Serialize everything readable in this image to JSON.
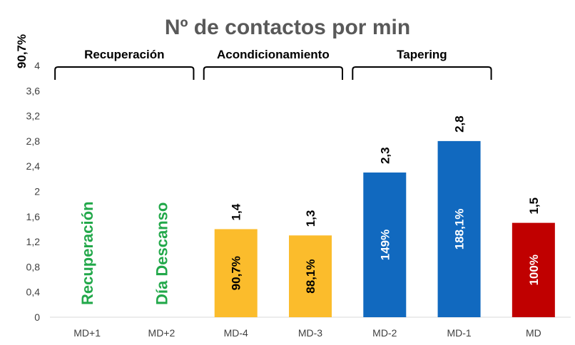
{
  "chart_data": {
    "type": "bar",
    "title": "Nº de contactos por min",
    "corner_label": "90,7%",
    "ylim": [
      0,
      4
    ],
    "yticks": [
      "0",
      "0,4",
      "0,8",
      "1,2",
      "1,6",
      "2",
      "2,4",
      "2,8",
      "3,2",
      "3,6",
      "4"
    ],
    "grid": false,
    "categories": [
      "MD+1",
      "MD+2",
      "MD-4",
      "MD-3",
      "MD-2",
      "MD-1",
      "MD"
    ],
    "values": [
      null,
      null,
      1.4,
      1.3,
      2.3,
      2.8,
      1.5
    ],
    "value_labels": [
      "",
      "",
      "1,4",
      "1,3",
      "2,3",
      "2,8",
      "1,5"
    ],
    "percent_labels": [
      "",
      "",
      "90,7%",
      "88,1%",
      "149%",
      "188,1%",
      "100%"
    ],
    "bar_colors": [
      "",
      "",
      "#FBBC2C",
      "#FBBC2C",
      "#1169BF",
      "#1169BF",
      "#C00000"
    ],
    "percent_label_colors": [
      "",
      "",
      "#000000",
      "#000000",
      "#ffffff",
      "#ffffff",
      "#ffffff"
    ],
    "rotated_notes": [
      {
        "category_index": 0,
        "text": "Recuperación",
        "color": "#22A84A"
      },
      {
        "category_index": 1,
        "text": "Día Descanso",
        "color": "#22A84A"
      }
    ],
    "groups": [
      {
        "label": "Recuperación",
        "from": 0,
        "to": 1
      },
      {
        "label": "Acondicionamiento",
        "from": 2,
        "to": 3
      },
      {
        "label": "Tapering",
        "from": 4,
        "to": 5
      }
    ]
  }
}
